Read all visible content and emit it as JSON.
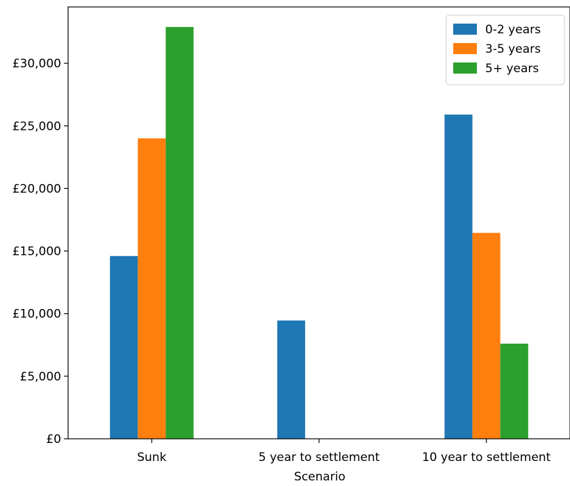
{
  "chart_data": {
    "type": "bar",
    "title": "",
    "xlabel": "Scenario",
    "ylabel": "",
    "categories": [
      "Sunk",
      "5 year to settlement",
      "10 year to settlement"
    ],
    "series": [
      {
        "name": "0-2 years",
        "color": "#1f77b4",
        "values": [
          14600,
          9450,
          25900
        ]
      },
      {
        "name": "3-5 years",
        "color": "#ff7f0e",
        "values": [
          24000,
          0,
          16450
        ]
      },
      {
        "name": "5+ years",
        "color": "#2ca02c",
        "values": [
          32900,
          0,
          7600
        ]
      }
    ],
    "ylim": [
      0,
      34500
    ],
    "yticks": [
      0,
      5000,
      10000,
      15000,
      20000,
      25000,
      30000
    ],
    "ytick_labels": [
      "£0",
      "£5,000",
      "£10,000",
      "£15,000",
      "£20,000",
      "£25,000",
      "£30,000"
    ],
    "grid": false,
    "legend_position": "top-right"
  }
}
